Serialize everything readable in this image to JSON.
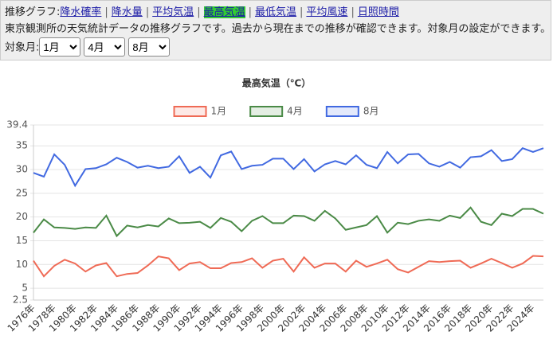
{
  "header": {
    "prefix": "推移グラフ:",
    "links": [
      "降水確率",
      "降水量",
      "平均気温",
      "最高気温",
      "最低気温",
      "平均風速",
      "日照時間"
    ],
    "active_link": 3,
    "separator": "|",
    "description": "東京観測所の天気統計データの推移グラフです。過去から現在までの推移が確認できます。対象月の設定ができます。",
    "month_label": "対象月:",
    "selects": [
      "1月",
      "4月",
      "8月"
    ]
  },
  "chart_data": {
    "type": "line",
    "title": "最高気温（℃）",
    "categories": [
      "1976年",
      null,
      "1978年",
      null,
      "1980年",
      null,
      "1982年",
      null,
      "1984年",
      null,
      "1986年",
      null,
      "1988年",
      null,
      "1990年",
      null,
      "1992年",
      null,
      "1994年",
      null,
      "1996年",
      null,
      "1998年",
      null,
      "2000年",
      null,
      "2002年",
      null,
      "2004年",
      null,
      "2006年",
      null,
      "2008年",
      null,
      "2010年",
      null,
      "2012年",
      null,
      "2014年",
      null,
      "2016年",
      null,
      "2018年",
      null,
      "2020年",
      null,
      "2022年",
      null,
      "2024年",
      null
    ],
    "series": [
      {
        "name": "1月",
        "color": "#ef6a55",
        "values": [
          10.8,
          7.5,
          9.7,
          11.0,
          10.2,
          8.5,
          9.8,
          10.3,
          7.5,
          8.0,
          8.2,
          9.8,
          11.7,
          11.3,
          8.8,
          10.2,
          10.5,
          9.2,
          9.2,
          10.3,
          10.5,
          11.3,
          9.3,
          10.8,
          11.2,
          8.5,
          11.5,
          9.3,
          10.2,
          10.2,
          8.5,
          10.8,
          9.5,
          10.2,
          11.0,
          9.0,
          8.3,
          9.5,
          10.7,
          10.5,
          10.7,
          10.8,
          9.3,
          10.2,
          11.2,
          10.3,
          9.3,
          10.2,
          11.8,
          11.7
        ]
      },
      {
        "name": "4月",
        "color": "#4a8a46",
        "values": [
          16.7,
          19.5,
          17.8,
          17.7,
          17.5,
          17.8,
          17.7,
          20.3,
          16.0,
          18.2,
          17.8,
          18.3,
          18.0,
          19.7,
          18.7,
          18.8,
          19.0,
          17.7,
          19.8,
          19.0,
          17.0,
          19.2,
          20.2,
          18.7,
          18.7,
          20.3,
          20.2,
          19.2,
          21.3,
          19.7,
          17.3,
          17.8,
          18.3,
          20.2,
          16.7,
          18.8,
          18.5,
          19.2,
          19.5,
          19.2,
          20.3,
          19.8,
          22.0,
          19.0,
          18.3,
          20.7,
          20.2,
          21.7,
          21.7,
          20.7
        ]
      },
      {
        "name": "8月",
        "color": "#4169e1",
        "values": [
          29.3,
          28.5,
          33.2,
          31.0,
          26.6,
          30.1,
          30.3,
          31.1,
          32.5,
          31.6,
          30.4,
          30.8,
          30.3,
          30.6,
          32.8,
          29.3,
          30.6,
          28.3,
          33.0,
          33.8,
          30.1,
          30.8,
          31.0,
          32.3,
          32.3,
          30.1,
          32.2,
          29.6,
          31.1,
          31.8,
          31.1,
          33.0,
          31.0,
          30.3,
          33.7,
          31.3,
          33.2,
          33.3,
          31.3,
          30.6,
          31.6,
          30.4,
          32.6,
          32.8,
          34.1,
          31.8,
          32.2,
          34.5,
          33.7,
          34.5
        ]
      }
    ],
    "ylim": [
      2.5,
      39.4
    ],
    "yticks": [
      2.5,
      5,
      10,
      15,
      20,
      25,
      30,
      35,
      39.4
    ],
    "grid": true,
    "legend": "top"
  }
}
